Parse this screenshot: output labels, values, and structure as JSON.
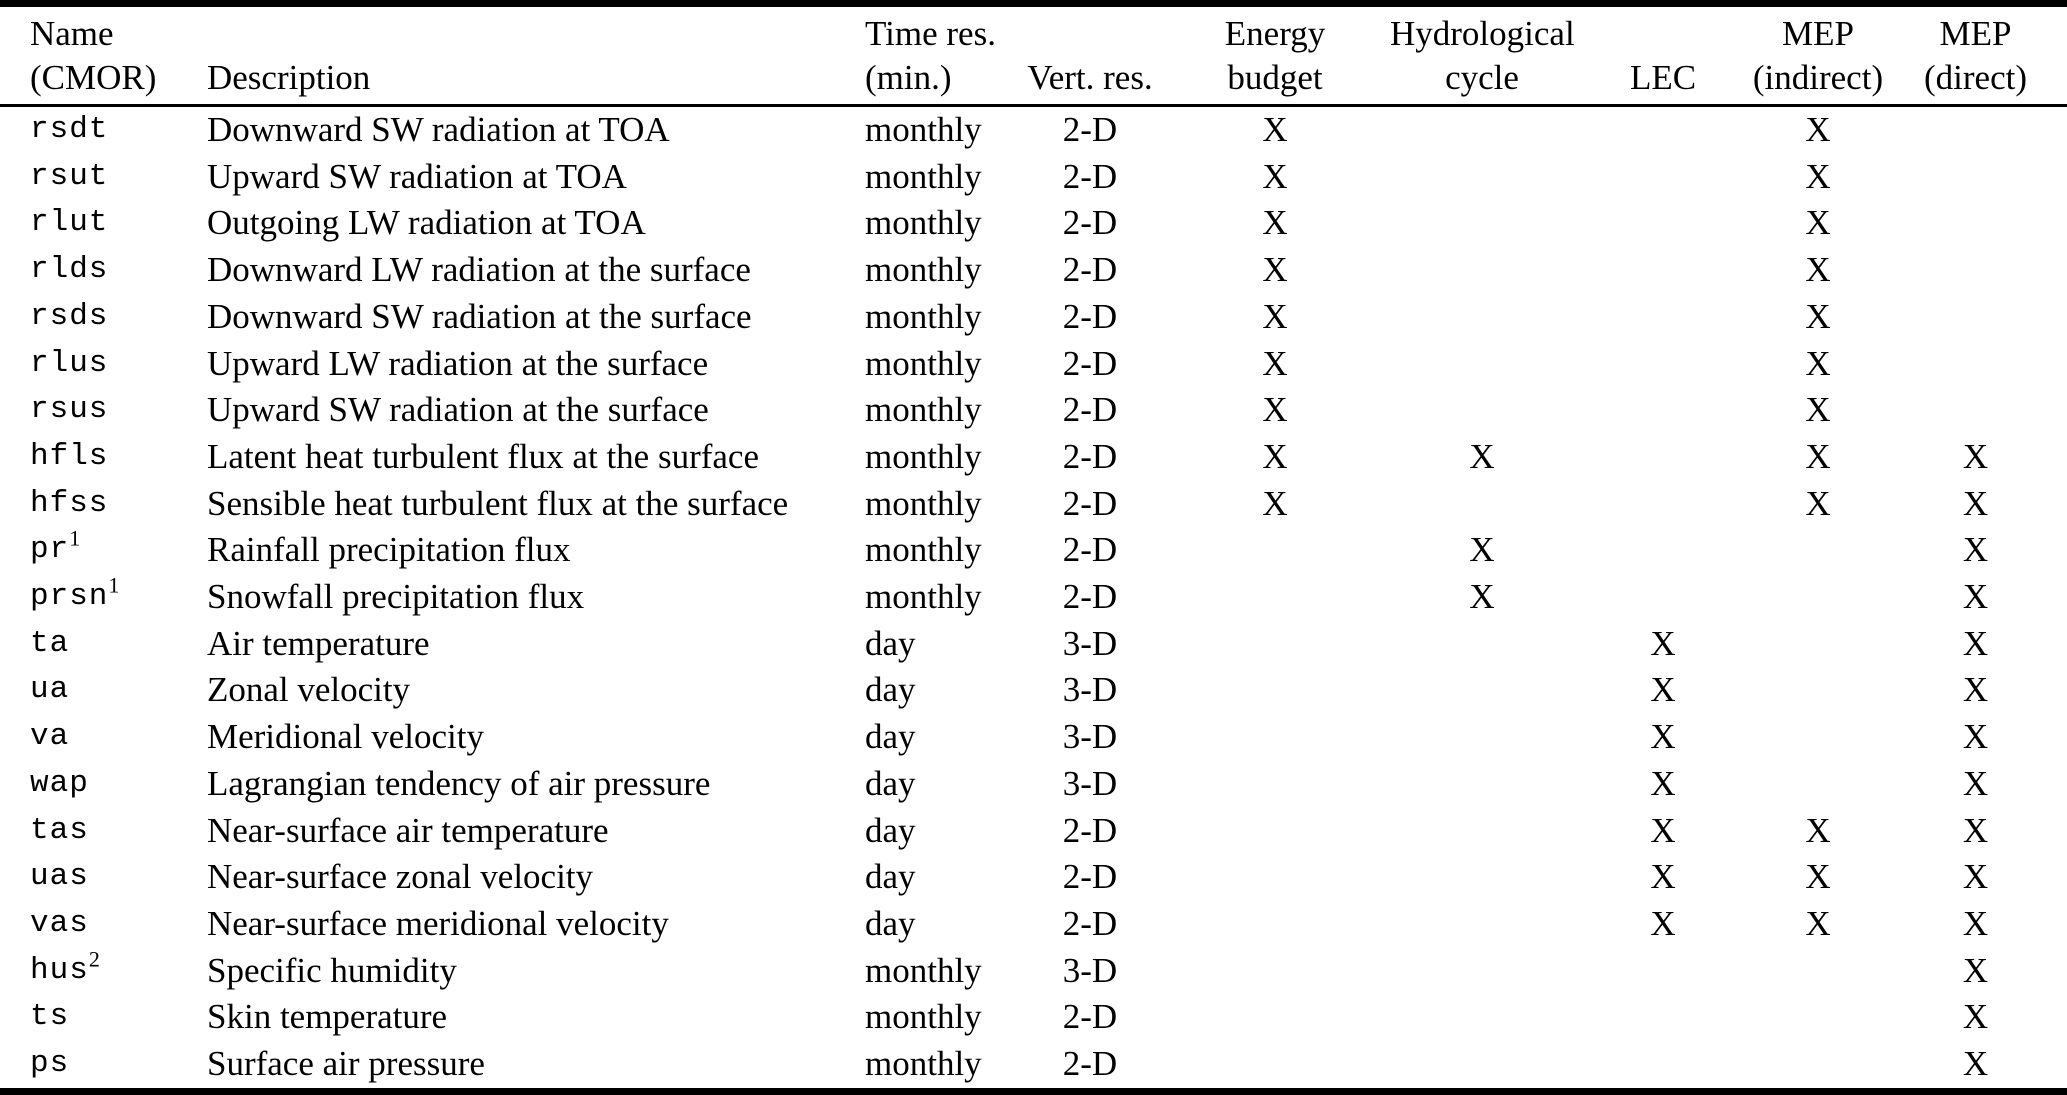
{
  "table": {
    "check_mark": "X",
    "columns": [
      {
        "id": "name",
        "label_line1": "Name",
        "label_line2": "(CMOR)"
      },
      {
        "id": "description",
        "label_line1": "",
        "label_line2": "Description"
      },
      {
        "id": "time_res",
        "label_line1": "Time res.",
        "label_line2": "(min.)"
      },
      {
        "id": "vert_res",
        "label_line1": "",
        "label_line2": "Vert. res."
      },
      {
        "id": "energy_budget",
        "label_line1": "Energy",
        "label_line2": "budget"
      },
      {
        "id": "hydrological_cycle",
        "label_line1": "Hydrological",
        "label_line2": "cycle"
      },
      {
        "id": "lec",
        "label_line1": "",
        "label_line2": "LEC"
      },
      {
        "id": "mep_indirect",
        "label_line1": "MEP",
        "label_line2": "(indirect)"
      },
      {
        "id": "mep_direct",
        "label_line1": "MEP",
        "label_line2": "(direct)"
      }
    ],
    "rows": [
      {
        "name": "rsdt",
        "sup": "",
        "description": "Downward SW radiation at TOA",
        "time_res": "monthly",
        "vert_res": "2-D",
        "energy_budget": true,
        "hydrological_cycle": false,
        "lec": false,
        "mep_indirect": true,
        "mep_direct": false
      },
      {
        "name": "rsut",
        "sup": "",
        "description": "Upward SW radiation at TOA",
        "time_res": "monthly",
        "vert_res": "2-D",
        "energy_budget": true,
        "hydrological_cycle": false,
        "lec": false,
        "mep_indirect": true,
        "mep_direct": false
      },
      {
        "name": "rlut",
        "sup": "",
        "description": "Outgoing LW radiation at TOA",
        "time_res": "monthly",
        "vert_res": "2-D",
        "energy_budget": true,
        "hydrological_cycle": false,
        "lec": false,
        "mep_indirect": true,
        "mep_direct": false
      },
      {
        "name": "rlds",
        "sup": "",
        "description": "Downward LW radiation at the surface",
        "time_res": "monthly",
        "vert_res": "2-D",
        "energy_budget": true,
        "hydrological_cycle": false,
        "lec": false,
        "mep_indirect": true,
        "mep_direct": false
      },
      {
        "name": "rsds",
        "sup": "",
        "description": "Downward SW radiation at the surface",
        "time_res": "monthly",
        "vert_res": "2-D",
        "energy_budget": true,
        "hydrological_cycle": false,
        "lec": false,
        "mep_indirect": true,
        "mep_direct": false
      },
      {
        "name": "rlus",
        "sup": "",
        "description": "Upward LW radiation at the surface",
        "time_res": "monthly",
        "vert_res": "2-D",
        "energy_budget": true,
        "hydrological_cycle": false,
        "lec": false,
        "mep_indirect": true,
        "mep_direct": false
      },
      {
        "name": "rsus",
        "sup": "",
        "description": "Upward SW radiation at the surface",
        "time_res": "monthly",
        "vert_res": "2-D",
        "energy_budget": true,
        "hydrological_cycle": false,
        "lec": false,
        "mep_indirect": true,
        "mep_direct": false
      },
      {
        "name": "hfls",
        "sup": "",
        "description": "Latent heat turbulent flux at the surface",
        "time_res": "monthly",
        "vert_res": "2-D",
        "energy_budget": true,
        "hydrological_cycle": true,
        "lec": false,
        "mep_indirect": true,
        "mep_direct": true
      },
      {
        "name": "hfss",
        "sup": "",
        "description": "Sensible heat turbulent flux at the surface",
        "time_res": "monthly",
        "vert_res": "2-D",
        "energy_budget": true,
        "hydrological_cycle": false,
        "lec": false,
        "mep_indirect": true,
        "mep_direct": true
      },
      {
        "name": "pr",
        "sup": "1",
        "description": "Rainfall precipitation flux",
        "time_res": "monthly",
        "vert_res": "2-D",
        "energy_budget": false,
        "hydrological_cycle": true,
        "lec": false,
        "mep_indirect": false,
        "mep_direct": true
      },
      {
        "name": "prsn",
        "sup": "1",
        "description": "Snowfall precipitation flux",
        "time_res": "monthly",
        "vert_res": "2-D",
        "energy_budget": false,
        "hydrological_cycle": true,
        "lec": false,
        "mep_indirect": false,
        "mep_direct": true
      },
      {
        "name": "ta",
        "sup": "",
        "description": "Air temperature",
        "time_res": "day",
        "vert_res": "3-D",
        "energy_budget": false,
        "hydrological_cycle": false,
        "lec": true,
        "mep_indirect": false,
        "mep_direct": true
      },
      {
        "name": "ua",
        "sup": "",
        "description": "Zonal velocity",
        "time_res": "day",
        "vert_res": "3-D",
        "energy_budget": false,
        "hydrological_cycle": false,
        "lec": true,
        "mep_indirect": false,
        "mep_direct": true
      },
      {
        "name": "va",
        "sup": "",
        "description": "Meridional velocity",
        "time_res": "day",
        "vert_res": "3-D",
        "energy_budget": false,
        "hydrological_cycle": false,
        "lec": true,
        "mep_indirect": false,
        "mep_direct": true
      },
      {
        "name": "wap",
        "sup": "",
        "description": "Lagrangian tendency of air pressure",
        "time_res": "day",
        "vert_res": "3-D",
        "energy_budget": false,
        "hydrological_cycle": false,
        "lec": true,
        "mep_indirect": false,
        "mep_direct": true
      },
      {
        "name": "tas",
        "sup": "",
        "description": "Near-surface air temperature",
        "time_res": "day",
        "vert_res": "2-D",
        "energy_budget": false,
        "hydrological_cycle": false,
        "lec": true,
        "mep_indirect": true,
        "mep_direct": true
      },
      {
        "name": "uas",
        "sup": "",
        "description": "Near-surface zonal velocity",
        "time_res": "day",
        "vert_res": "2-D",
        "energy_budget": false,
        "hydrological_cycle": false,
        "lec": true,
        "mep_indirect": true,
        "mep_direct": true
      },
      {
        "name": "vas",
        "sup": "",
        "description": "Near-surface meridional velocity",
        "time_res": "day",
        "vert_res": "2-D",
        "energy_budget": false,
        "hydrological_cycle": false,
        "lec": true,
        "mep_indirect": true,
        "mep_direct": true
      },
      {
        "name": "hus",
        "sup": "2",
        "description": "Specific humidity",
        "time_res": "monthly",
        "vert_res": "3-D",
        "energy_budget": false,
        "hydrological_cycle": false,
        "lec": false,
        "mep_indirect": false,
        "mep_direct": true
      },
      {
        "name": "ts",
        "sup": "",
        "description": "Skin temperature",
        "time_res": "monthly",
        "vert_res": "2-D",
        "energy_budget": false,
        "hydrological_cycle": false,
        "lec": false,
        "mep_indirect": false,
        "mep_direct": true
      },
      {
        "name": "ps",
        "sup": "",
        "description": "Surface air pressure",
        "time_res": "monthly",
        "vert_res": "2-D",
        "energy_budget": false,
        "hydrological_cycle": false,
        "lec": false,
        "mep_indirect": false,
        "mep_direct": true
      }
    ]
  }
}
